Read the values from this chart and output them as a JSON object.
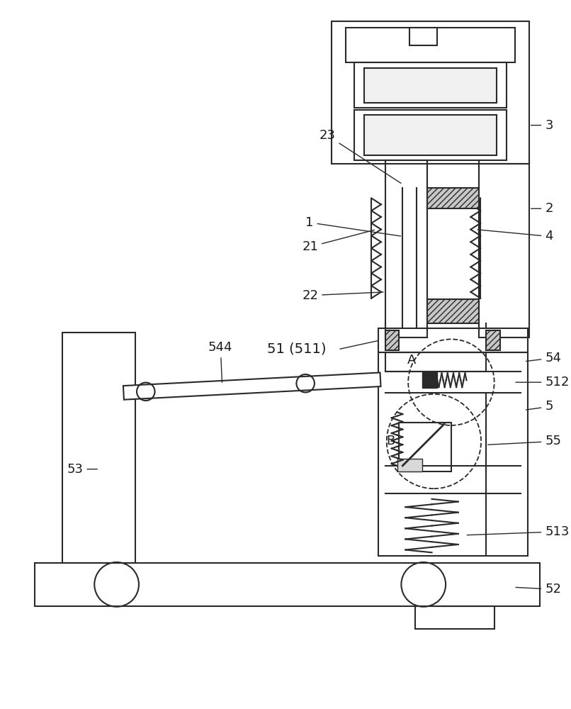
{
  "bg_color": "#ffffff",
  "line_color": "#2a2a2a",
  "label_color": "#1a1a1a",
  "label_fontsize": 13,
  "lw": 1.5
}
